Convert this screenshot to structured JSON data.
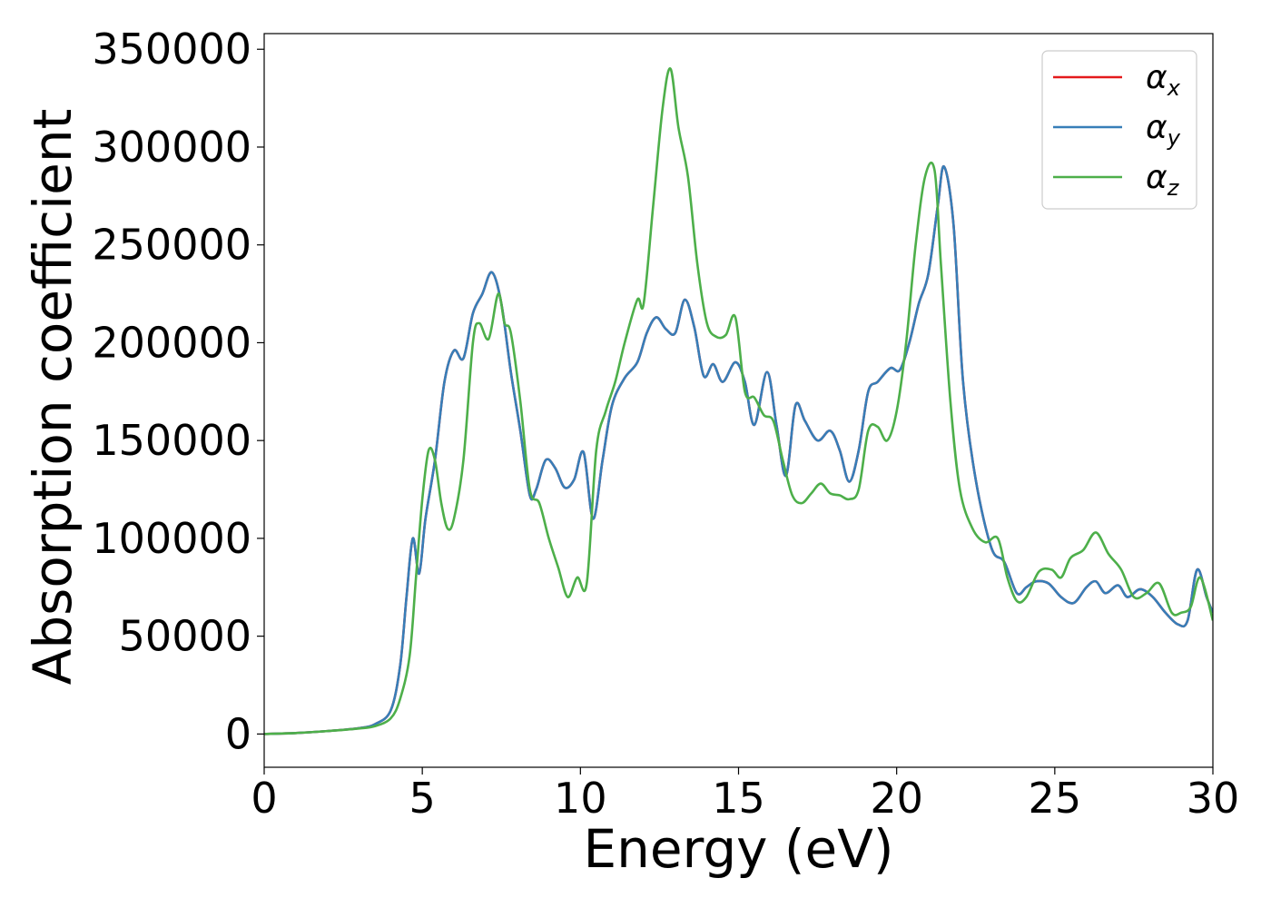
{
  "chart_data": {
    "type": "line",
    "xlabel": "Energy (eV)",
    "ylabel": "Absorption coefficient",
    "xlim": [
      0,
      30
    ],
    "ylim": [
      -17000,
      358000
    ],
    "xticks": [
      "0",
      "5",
      "10",
      "15",
      "20",
      "25",
      "30"
    ],
    "yticks": [
      "0",
      "50000",
      "100000",
      "150000",
      "200000",
      "250000",
      "300000",
      "350000"
    ],
    "grid": false,
    "legend_position": "top-right",
    "series": [
      {
        "name": "αx",
        "legend_base": "α",
        "legend_sub": "x",
        "color": "#e41a1c",
        "x": [
          0,
          1,
          2,
          3,
          3.5,
          4,
          4.3,
          4.5,
          4.7,
          4.9,
          5.1,
          5.4,
          5.7,
          6.0,
          6.3,
          6.6,
          6.9,
          7.2,
          7.5,
          7.8,
          8.1,
          8.4,
          8.6,
          8.9,
          9.2,
          9.5,
          9.8,
          10.1,
          10.4,
          10.7,
          11.0,
          11.4,
          11.8,
          12.1,
          12.4,
          12.7,
          13.0,
          13.3,
          13.6,
          13.9,
          14.2,
          14.5,
          14.9,
          15.2,
          15.5,
          15.9,
          16.2,
          16.5,
          16.8,
          17.1,
          17.5,
          17.9,
          18.2,
          18.5,
          18.8,
          19.1,
          19.4,
          19.8,
          20.1,
          20.4,
          20.7,
          21.0,
          21.3,
          21.5,
          21.8,
          22.1,
          22.5,
          23.0,
          23.4,
          23.8,
          24.1,
          24.4,
          24.8,
          25.2,
          25.6,
          26.0,
          26.3,
          26.6,
          27.0,
          27.3,
          27.7,
          28.1,
          28.5,
          28.9,
          29.2,
          29.5,
          29.8,
          30
        ],
        "y": [
          0,
          500,
          1500,
          3000,
          5000,
          12000,
          35000,
          70000,
          100000,
          82000,
          110000,
          140000,
          180000,
          196000,
          192000,
          215000,
          225000,
          236000,
          220000,
          185000,
          155000,
          122000,
          125000,
          140000,
          136000,
          126000,
          130000,
          144000,
          110000,
          140000,
          168000,
          182000,
          190000,
          205000,
          213000,
          207000,
          205000,
          222000,
          208000,
          183000,
          189000,
          180000,
          190000,
          180000,
          158000,
          185000,
          158000,
          132000,
          168000,
          160000,
          150000,
          155000,
          145000,
          129000,
          145000,
          175000,
          180000,
          187000,
          186000,
          200000,
          220000,
          235000,
          270000,
          290000,
          260000,
          180000,
          130000,
          95000,
          88000,
          72000,
          75000,
          78000,
          77000,
          70000,
          67000,
          75000,
          78000,
          72000,
          76000,
          70000,
          74000,
          70000,
          62000,
          56000,
          58000,
          84000,
          70000,
          62000
        ]
      },
      {
        "name": "αy",
        "legend_base": "α",
        "legend_sub": "y",
        "color": "#377eb8",
        "x": [
          0,
          1,
          2,
          3,
          3.5,
          4,
          4.3,
          4.5,
          4.7,
          4.9,
          5.1,
          5.4,
          5.7,
          6.0,
          6.3,
          6.6,
          6.9,
          7.2,
          7.5,
          7.8,
          8.1,
          8.4,
          8.6,
          8.9,
          9.2,
          9.5,
          9.8,
          10.1,
          10.4,
          10.7,
          11.0,
          11.4,
          11.8,
          12.1,
          12.4,
          12.7,
          13.0,
          13.3,
          13.6,
          13.9,
          14.2,
          14.5,
          14.9,
          15.2,
          15.5,
          15.9,
          16.2,
          16.5,
          16.8,
          17.1,
          17.5,
          17.9,
          18.2,
          18.5,
          18.8,
          19.1,
          19.4,
          19.8,
          20.1,
          20.4,
          20.7,
          21.0,
          21.3,
          21.5,
          21.8,
          22.1,
          22.5,
          23.0,
          23.4,
          23.8,
          24.1,
          24.4,
          24.8,
          25.2,
          25.6,
          26.0,
          26.3,
          26.6,
          27.0,
          27.3,
          27.7,
          28.1,
          28.5,
          28.9,
          29.2,
          29.5,
          29.8,
          30
        ],
        "y": [
          0,
          500,
          1500,
          3000,
          5000,
          12000,
          35000,
          70000,
          100000,
          82000,
          110000,
          140000,
          180000,
          196000,
          192000,
          215000,
          225000,
          236000,
          220000,
          185000,
          155000,
          122000,
          125000,
          140000,
          136000,
          126000,
          130000,
          144000,
          110000,
          140000,
          168000,
          182000,
          190000,
          205000,
          213000,
          207000,
          205000,
          222000,
          208000,
          183000,
          189000,
          180000,
          190000,
          180000,
          158000,
          185000,
          158000,
          132000,
          168000,
          160000,
          150000,
          155000,
          145000,
          129000,
          145000,
          175000,
          180000,
          187000,
          186000,
          200000,
          220000,
          235000,
          270000,
          290000,
          260000,
          180000,
          130000,
          95000,
          88000,
          72000,
          75000,
          78000,
          77000,
          70000,
          67000,
          75000,
          78000,
          72000,
          76000,
          70000,
          74000,
          70000,
          62000,
          56000,
          58000,
          84000,
          70000,
          62000
        ]
      },
      {
        "name": "αz",
        "legend_base": "α",
        "legend_sub": "z",
        "color": "#4daf4a",
        "x": [
          0,
          1,
          2,
          3,
          3.5,
          4,
          4.3,
          4.6,
          4.8,
          5.0,
          5.2,
          5.4,
          5.6,
          5.8,
          6.0,
          6.3,
          6.6,
          6.8,
          7.1,
          7.4,
          7.6,
          7.8,
          8.1,
          8.4,
          8.7,
          9.0,
          9.3,
          9.6,
          9.9,
          10.2,
          10.5,
          10.8,
          11.1,
          11.4,
          11.8,
          12.0,
          12.3,
          12.6,
          12.85,
          13.1,
          13.4,
          13.7,
          14.0,
          14.3,
          14.6,
          14.9,
          15.2,
          15.5,
          15.8,
          16.1,
          16.4,
          16.7,
          17.0,
          17.3,
          17.6,
          17.9,
          18.2,
          18.5,
          18.8,
          19.1,
          19.4,
          19.7,
          20.0,
          20.3,
          20.6,
          20.9,
          21.2,
          21.4,
          21.7,
          22.0,
          22.4,
          22.8,
          23.2,
          23.5,
          23.8,
          24.1,
          24.5,
          24.9,
          25.2,
          25.5,
          25.9,
          26.3,
          26.7,
          27.1,
          27.5,
          27.9,
          28.3,
          28.7,
          29.0,
          29.3,
          29.6,
          30
        ],
        "y": [
          0,
          500,
          1500,
          2800,
          4000,
          8000,
          18000,
          40000,
          80000,
          120000,
          145000,
          140000,
          118000,
          105000,
          110000,
          140000,
          200000,
          210000,
          202000,
          225000,
          210000,
          205000,
          170000,
          125000,
          118000,
          100000,
          85000,
          70000,
          80000,
          77000,
          145000,
          165000,
          180000,
          200000,
          222000,
          220000,
          270000,
          320000,
          340000,
          310000,
          285000,
          240000,
          210000,
          203000,
          204000,
          213000,
          175000,
          172000,
          163000,
          160000,
          140000,
          122000,
          118000,
          123000,
          128000,
          123000,
          122000,
          120000,
          125000,
          155000,
          157000,
          150000,
          165000,
          200000,
          250000,
          285000,
          288000,
          240000,
          170000,
          125000,
          105000,
          98000,
          100000,
          80000,
          68000,
          70000,
          83000,
          84000,
          80000,
          90000,
          94000,
          103000,
          92000,
          84000,
          70000,
          72000,
          77000,
          62000,
          62000,
          65000,
          80000,
          58000
        ]
      }
    ]
  }
}
